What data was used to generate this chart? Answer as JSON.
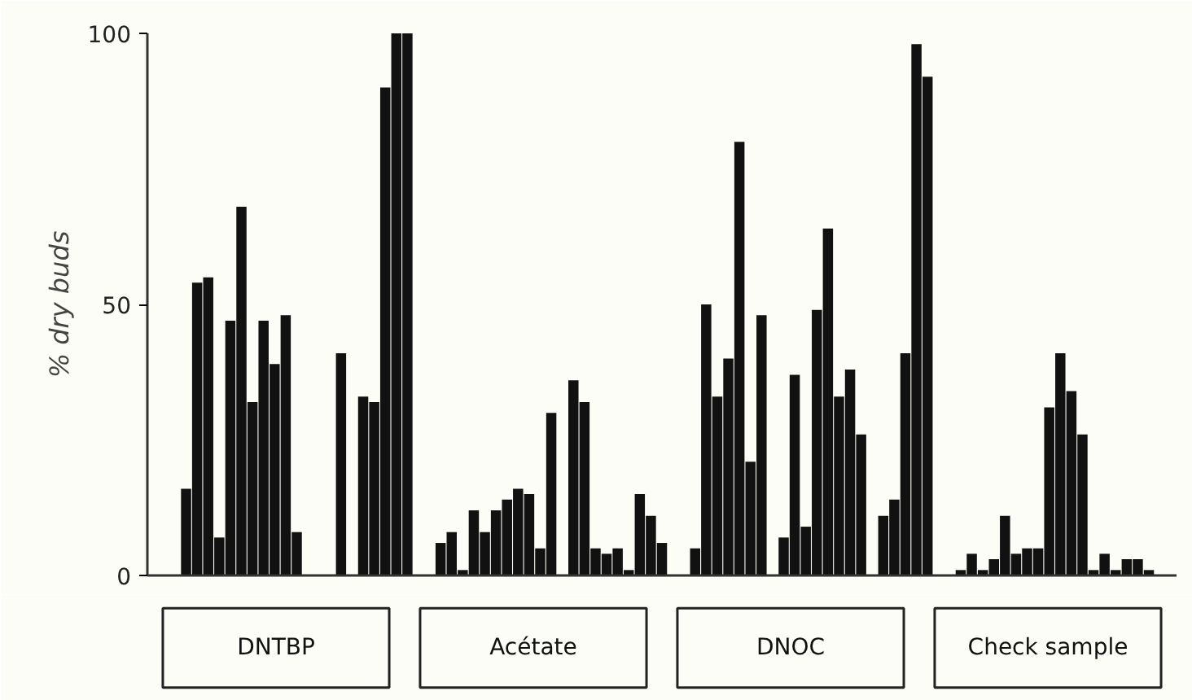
{
  "chart_data": {
    "type": "bar",
    "ylabel": "% dry buds",
    "categories": [
      null,
      null,
      null,
      null,
      null,
      null,
      null,
      null,
      null,
      null,
      null,
      null,
      null,
      null,
      null,
      null,
      null,
      null,
      null,
      null,
      null,
      null,
      null,
      null,
      null,
      null,
      null,
      null,
      null,
      null,
      null,
      null,
      null,
      null,
      null,
      null,
      null,
      null,
      null,
      null,
      null,
      null,
      null,
      null,
      null,
      null,
      null,
      null,
      null,
      null,
      null,
      null,
      null,
      null,
      null,
      null,
      null,
      null,
      null,
      null,
      null,
      null,
      null,
      null,
      null,
      null,
      null,
      null,
      null,
      null,
      null,
      null,
      null,
      null,
      null,
      null,
      null,
      null,
      null,
      null,
      null,
      null,
      null,
      null,
      null,
      null,
      null,
      null,
      null,
      null,
      null,
      null,
      null
    ],
    "values": [
      null,
      null,
      null,
      16,
      54,
      55,
      7,
      47,
      68,
      32,
      47,
      39,
      48,
      8,
      null,
      null,
      null,
      41,
      null,
      33,
      32,
      90,
      100,
      100,
      null,
      null,
      6,
      8,
      1,
      12,
      8,
      12,
      14,
      16,
      15,
      5,
      30,
      null,
      36,
      32,
      5,
      4,
      5,
      1,
      15,
      11,
      6,
      null,
      null,
      5,
      50,
      33,
      40,
      80,
      21,
      48,
      null,
      7,
      37,
      9,
      49,
      64,
      33,
      38,
      26,
      null,
      11,
      14,
      41,
      98,
      92,
      null,
      null,
      1,
      4,
      1,
      3,
      11,
      4,
      5,
      5,
      31,
      41,
      34,
      26,
      1,
      4,
      1,
      3,
      3,
      1,
      null,
      null
    ],
    "color": "#111111",
    "ylim": [
      0,
      100
    ],
    "yticks": [
      0,
      50,
      100
    ],
    "tick_labels": "y",
    "grid": false,
    "annotations": [
      "DNTBP",
      "Acétate",
      "DNOC",
      "Check sample"
    ]
  }
}
